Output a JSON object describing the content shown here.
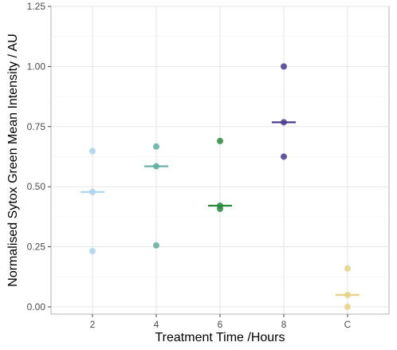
{
  "chart_data": {
    "type": "scatter",
    "title": "",
    "xlabel": "Treatment Time /Hours",
    "ylabel": "Normalised Sytox Green Mean Intensity / AU",
    "categories": [
      "2",
      "4",
      "6",
      "8",
      "C"
    ],
    "ylim": [
      -0.03,
      1.25
    ],
    "yticks": [
      "0.00",
      "0.25",
      "0.50",
      "0.75",
      "1.00",
      "1.25"
    ],
    "grid": true,
    "legend": "none",
    "groups": [
      {
        "category": "2",
        "color": "#a8d4ef",
        "points": [
          0.648,
          0.478,
          0.232
        ],
        "median": 0.478
      },
      {
        "category": "4",
        "color": "#5fae9e",
        "points": [
          0.667,
          0.585,
          0.256
        ],
        "median": 0.585
      },
      {
        "category": "6",
        "color": "#2b8a3e",
        "points": [
          0.69,
          0.421,
          0.408
        ],
        "median": 0.421
      },
      {
        "category": "8",
        "color": "#4a3a8f",
        "points": [
          1.0,
          0.768,
          0.625
        ],
        "median": 0.768
      },
      {
        "category": "C",
        "color": "#e6d184",
        "points": [
          0.16,
          0.05,
          0.0
        ],
        "median": 0.05
      }
    ]
  }
}
